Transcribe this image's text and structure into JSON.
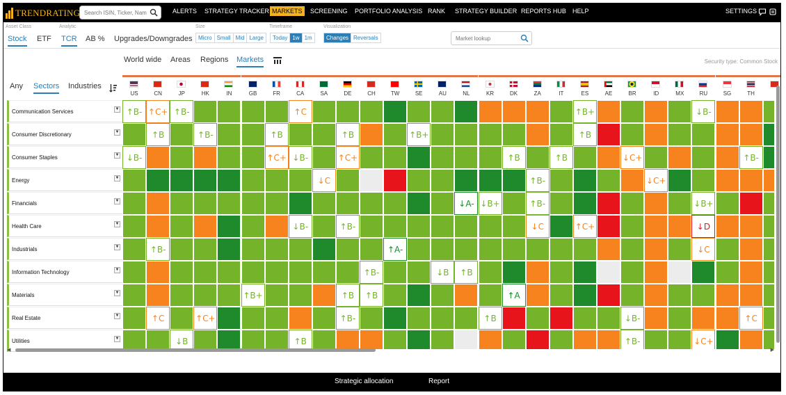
{
  "brand": {
    "name": "TRENDRATING",
    "color": "#f3b21f"
  },
  "search": {
    "placeholder": "Search ISIN, Ticker, Name",
    "icon": "search-icon"
  },
  "nav": {
    "items": [
      "ALERTS",
      "STRATEGY TRACKER",
      "MARKETS",
      "SCREENING",
      "PORTFOLIO ANALYSIS",
      "RANK",
      "STRATEGY BUILDER",
      "REPORTS HUB",
      "HELP"
    ],
    "active": "MARKETS",
    "settings": "SETTINGS"
  },
  "toolbar": {
    "asset_class": {
      "label": "Asset Class",
      "options": [
        "Stock",
        "ETF"
      ],
      "selected": "Stock"
    },
    "analytic": {
      "label": "Analytic",
      "options": [
        "TCR",
        "AB %",
        "Upgrades/Downgrades"
      ],
      "selected": "TCR"
    },
    "size": {
      "label": "Size",
      "options": [
        "Micro",
        "Small",
        "Mid",
        "Large"
      ]
    },
    "timeframe": {
      "label": "Timeframe",
      "options": [
        "Today",
        "1w",
        "1m"
      ],
      "selected": "1w"
    },
    "visualization": {
      "label": "Visualization",
      "options": [
        "Changes",
        "Reversals"
      ],
      "selected": "Changes"
    },
    "market_lookup": {
      "placeholder": "Market lookup"
    }
  },
  "geo_tabs": {
    "items": [
      "World wide",
      "Areas",
      "Regions",
      "Markets"
    ],
    "selected": "Markets"
  },
  "security_type": "Security type: Common Stock",
  "filter_tabs": {
    "items": [
      "Any",
      "Sectors",
      "Industries"
    ],
    "selected": "Sectors"
  },
  "colors": {
    "green": "#75b42a",
    "dark_green": "#1e8a2c",
    "orange": "#f7831e",
    "red": "#e8141b",
    "neutral": "#ececec",
    "accent": "#2b7fb6"
  },
  "markets": [
    "US",
    "CN",
    "JP",
    "HK",
    "IN",
    "GB",
    "FR",
    "CA",
    "SA",
    "DE",
    "CH",
    "TW",
    "SE",
    "AU",
    "NL",
    "KR",
    "DK",
    "ZA",
    "IT",
    "ES",
    "AE",
    "BR",
    "ID",
    "MX",
    "RU",
    "SG",
    "TH",
    ""
  ],
  "sectors": [
    "Communication Services",
    "Consumer Discretionary",
    "Consumer Staples",
    "Energy",
    "Financials",
    "Health Care",
    "Industrials",
    "Information Technology",
    "Materials",
    "Real Estate",
    "Utilities"
  ],
  "heatmap": {
    "legend": {
      "G": "green",
      "D": "dark green",
      "O": "orange",
      "R": "red",
      "N": "neutral"
    },
    "base": [
      "GGGGGGGGGGGDGGDOOOGGOGOGGOOG",
      "GGGGGGGGGGOGGGGGGOGGRGOGGOOD",
      "GOGOGGGGGGGGDGGGGGGGOGGOGOGD",
      "GDDDDGGGGGNRGGDDDGGDGOGDGOOO",
      "GOGGGGGDGGGGDGGGGGGDRGOGGGRG",
      "GOGODGOGGGGGGGGGGGDGRGOOGOOG",
      "GGGGDGGGDGGGGGGGGGGGOGOGGGOG",
      "GOGGGGGGGGGGGGGGDOGDNGONDGOG",
      "GOGGGGGGOGGGDGOGGOGDRGOGGOOG",
      "GGGGDGGOGGGDGGGGRGRGGGOGOOOG",
      "GGGGDGGGGOOGDGNOGRGOOGGGGDOG"
    ],
    "ratings": [
      {
        "row": 0,
        "col": 0,
        "text": "↑B-",
        "color": "G"
      },
      {
        "row": 0,
        "col": 1,
        "text": "↑C+",
        "color": "O"
      },
      {
        "row": 0,
        "col": 2,
        "text": "↑B-",
        "color": "G"
      },
      {
        "row": 0,
        "col": 7,
        "text": "↑C",
        "color": "O"
      },
      {
        "row": 0,
        "col": 19,
        "text": "↑B+",
        "color": "G"
      },
      {
        "row": 0,
        "col": 24,
        "text": "↓B-",
        "color": "G"
      },
      {
        "row": 1,
        "col": 1,
        "text": "↑B",
        "color": "G"
      },
      {
        "row": 1,
        "col": 3,
        "text": "↑B-",
        "color": "G"
      },
      {
        "row": 1,
        "col": 6,
        "text": "↑B",
        "color": "G"
      },
      {
        "row": 1,
        "col": 9,
        "text": "↑B",
        "color": "G"
      },
      {
        "row": 1,
        "col": 12,
        "text": "↑B+",
        "color": "G"
      },
      {
        "row": 1,
        "col": 19,
        "text": "↑B",
        "color": "G"
      },
      {
        "row": 2,
        "col": 0,
        "text": "↓B-",
        "color": "G"
      },
      {
        "row": 2,
        "col": 6,
        "text": "↑C+",
        "color": "O"
      },
      {
        "row": 2,
        "col": 7,
        "text": "↓B-",
        "color": "G"
      },
      {
        "row": 2,
        "col": 9,
        "text": "↑C+",
        "color": "O"
      },
      {
        "row": 2,
        "col": 16,
        "text": "↑B",
        "color": "G"
      },
      {
        "row": 2,
        "col": 18,
        "text": "↑B",
        "color": "G"
      },
      {
        "row": 2,
        "col": 21,
        "text": "↓C+",
        "color": "O"
      },
      {
        "row": 2,
        "col": 26,
        "text": "↑B-",
        "color": "G"
      },
      {
        "row": 3,
        "col": 8,
        "text": "↓C",
        "color": "O"
      },
      {
        "row": 3,
        "col": 17,
        "text": "↑B-",
        "color": "G"
      },
      {
        "row": 3,
        "col": 22,
        "text": "↓C+",
        "color": "O"
      },
      {
        "row": 4,
        "col": 14,
        "text": "↓A-",
        "color": "D"
      },
      {
        "row": 4,
        "col": 15,
        "text": "↓B+",
        "color": "G"
      },
      {
        "row": 4,
        "col": 17,
        "text": "↑B-",
        "color": "G"
      },
      {
        "row": 4,
        "col": 24,
        "text": "↓B+",
        "color": "G"
      },
      {
        "row": 5,
        "col": 7,
        "text": "↓B-",
        "color": "G"
      },
      {
        "row": 5,
        "col": 9,
        "text": "↑B-",
        "color": "G"
      },
      {
        "row": 5,
        "col": 17,
        "text": "↓C",
        "color": "O"
      },
      {
        "row": 5,
        "col": 19,
        "text": "↑C+",
        "color": "O"
      },
      {
        "row": 5,
        "col": 24,
        "text": "↓D",
        "color": "R"
      },
      {
        "row": 6,
        "col": 1,
        "text": "↑B-",
        "color": "G"
      },
      {
        "row": 6,
        "col": 11,
        "text": "↑A-",
        "color": "D"
      },
      {
        "row": 6,
        "col": 24,
        "text": "↓C",
        "color": "O"
      },
      {
        "row": 7,
        "col": 10,
        "text": "↑B-",
        "color": "G"
      },
      {
        "row": 7,
        "col": 13,
        "text": "↓B",
        "color": "G"
      },
      {
        "row": 7,
        "col": 14,
        "text": "↑B",
        "color": "G"
      },
      {
        "row": 8,
        "col": 5,
        "text": "↑B+",
        "color": "G"
      },
      {
        "row": 8,
        "col": 9,
        "text": "↑B",
        "color": "G"
      },
      {
        "row": 8,
        "col": 10,
        "text": "↑B",
        "color": "G"
      },
      {
        "row": 8,
        "col": 16,
        "text": "↑A",
        "color": "D"
      },
      {
        "row": 9,
        "col": 1,
        "text": "↑C",
        "color": "O"
      },
      {
        "row": 9,
        "col": 3,
        "text": "↑C+",
        "color": "O"
      },
      {
        "row": 9,
        "col": 9,
        "text": "↑B-",
        "color": "G"
      },
      {
        "row": 9,
        "col": 15,
        "text": "↑B",
        "color": "G"
      },
      {
        "row": 9,
        "col": 21,
        "text": "↓B-",
        "color": "G"
      },
      {
        "row": 9,
        "col": 26,
        "text": "↑C",
        "color": "O"
      },
      {
        "row": 10,
        "col": 2,
        "text": "↓B",
        "color": "G"
      },
      {
        "row": 10,
        "col": 7,
        "text": "↑B",
        "color": "G"
      },
      {
        "row": 10,
        "col": 21,
        "text": "↑B-",
        "color": "G"
      },
      {
        "row": 10,
        "col": 24,
        "text": "↓C+",
        "color": "O"
      }
    ]
  },
  "footer": {
    "items": [
      "Strategic allocation",
      "Report"
    ]
  }
}
